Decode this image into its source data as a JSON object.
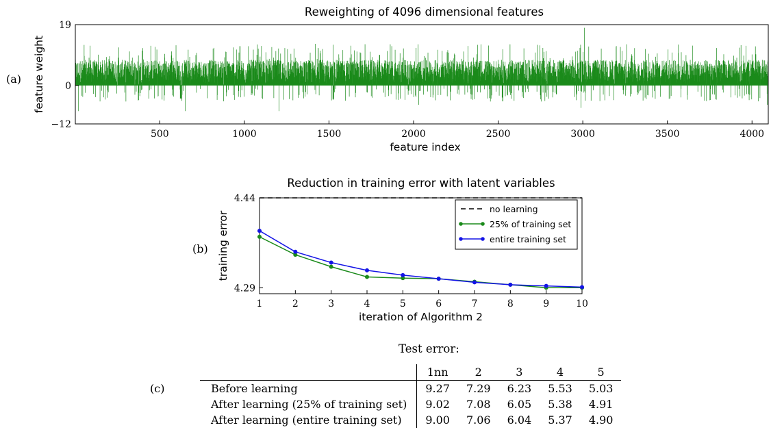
{
  "panel_labels": {
    "a": "(a)",
    "b": "(b)",
    "c": "(c)"
  },
  "colors": {
    "green": "#1a8a1a",
    "blue": "#1414e6",
    "black": "#000000"
  },
  "chart_data": [
    {
      "type": "bar",
      "title": "Reweighting of 4096 dimensional features",
      "xlabel": "feature index",
      "ylabel": "feature weight",
      "xlim": [
        1,
        4096
      ],
      "ylim": [
        -12,
        19
      ],
      "yticks": [
        "19",
        "0",
        "−12"
      ],
      "xticks": [
        "500",
        "1000",
        "1500",
        "2000",
        "2500",
        "3000",
        "3500",
        "4000"
      ],
      "series_color": "#1a8a1a",
      "summary": {
        "n_features": 4096,
        "typical_positive_range": [
          0,
          8
        ],
        "max_value": 18,
        "min_value": -12
      },
      "notable_values": [
        {
          "x": 20,
          "y": -8
        },
        {
          "x": 300,
          "y": -5
        },
        {
          "x": 650,
          "y": -8
        },
        {
          "x": 1205,
          "y": -8
        },
        {
          "x": 1420,
          "y": 13
        },
        {
          "x": 2030,
          "y": -6
        },
        {
          "x": 3010,
          "y": 18
        },
        {
          "x": 2990,
          "y": -7
        },
        {
          "x": 4090,
          "y": -6
        }
      ]
    },
    {
      "type": "line",
      "title": "Reduction in training error with latent variables",
      "xlabel": "iteration of Algorithm 2",
      "ylabel": "training error",
      "xlim": [
        1,
        10
      ],
      "ylim": [
        4.28,
        4.44
      ],
      "xticks": [
        "1",
        "2",
        "3",
        "4",
        "5",
        "6",
        "7",
        "8",
        "9",
        "10"
      ],
      "yticks": [
        "4.44",
        "4.29"
      ],
      "legend_position": "top-right",
      "x": [
        1,
        2,
        3,
        4,
        5,
        6,
        7,
        8,
        9,
        10
      ],
      "series": [
        {
          "name": "no learning",
          "style": "dashed",
          "color": "#000000",
          "values": [
            4.44,
            4.44,
            4.44,
            4.44,
            4.44,
            4.44,
            4.44,
            4.44,
            4.44,
            4.44
          ]
        },
        {
          "name": "25% of training set",
          "style": "solid",
          "color": "#1a8a1a",
          "values": [
            4.375,
            4.345,
            4.325,
            4.308,
            4.306,
            4.305,
            4.3,
            4.295,
            4.29,
            4.29
          ]
        },
        {
          "name": "entire training set",
          "style": "solid",
          "color": "#1414e6",
          "values": [
            4.385,
            4.35,
            4.332,
            4.319,
            4.311,
            4.305,
            4.299,
            4.295,
            4.293,
            4.291
          ]
        }
      ]
    },
    {
      "type": "table",
      "title": "Test error:",
      "columns": [
        "",
        "1nn",
        "2",
        "3",
        "4",
        "5"
      ],
      "rows": [
        {
          "label": "Before learning",
          "values": [
            "9.27",
            "7.29",
            "6.23",
            "5.53",
            "5.03"
          ]
        },
        {
          "label": "After learning (25% of training set)",
          "values": [
            "9.02",
            "7.08",
            "6.05",
            "5.38",
            "4.91"
          ]
        },
        {
          "label": "After learning (entire training set)",
          "values": [
            "9.00",
            "7.06",
            "6.04",
            "5.37",
            "4.90"
          ]
        }
      ]
    }
  ]
}
